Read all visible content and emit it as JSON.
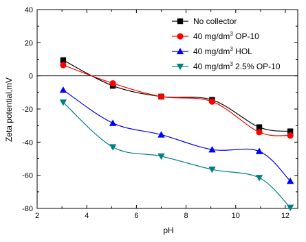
{
  "chart_data": {
    "type": "line",
    "title": "",
    "xlabel": "pH",
    "ylabel": "Zeta potential,mV",
    "xlim": [
      2,
      12.5
    ],
    "ylim": [
      -80,
      40
    ],
    "x_ticks": [
      2,
      4,
      6,
      8,
      10,
      12
    ],
    "y_ticks": [
      -80,
      -60,
      -40,
      -20,
      0,
      20,
      40
    ],
    "grid": false,
    "zero_line": true,
    "legend_position": "top-right",
    "series": [
      {
        "name": "No collector",
        "name_parts": [
          "No collector"
        ],
        "color": "#000000",
        "marker": "square",
        "x": [
          3.05,
          5.05,
          7.0,
          9.05,
          10.95,
          12.2
        ],
        "y": [
          9.5,
          -6.0,
          -12.5,
          -14.5,
          -31.0,
          -33.5
        ]
      },
      {
        "name": "40 mg/dm3 OP-10",
        "name_parts": [
          "40 mg/dm",
          "3",
          " OP-10"
        ],
        "color": "#ff0000",
        "marker": "circle",
        "x": [
          3.05,
          5.05,
          7.0,
          9.05,
          10.95,
          12.2
        ],
        "y": [
          6.5,
          -4.5,
          -12.5,
          -15.5,
          -34.0,
          -36.0
        ]
      },
      {
        "name": "40 mg/dm3 HOL",
        "name_parts": [
          "40 mg/dm",
          "3",
          " HOL"
        ],
        "color": "#0000ff",
        "marker": "triangle-up",
        "x": [
          3.05,
          5.05,
          7.0,
          9.05,
          10.95,
          12.2
        ],
        "y": [
          -8.5,
          -28.5,
          -35.5,
          -44.5,
          -45.5,
          -63.5
        ]
      },
      {
        "name": "40 mg/dm3 2.5% OP-10",
        "name_parts": [
          "40 mg/dm",
          "3",
          " 2.5% OP-10"
        ],
        "color": "#008080",
        "marker": "triangle-down",
        "x": [
          3.05,
          5.05,
          7.0,
          9.05,
          10.95,
          12.2
        ],
        "y": [
          -16.0,
          -43.0,
          -48.5,
          -56.5,
          -61.5,
          -79.5
        ]
      }
    ]
  }
}
